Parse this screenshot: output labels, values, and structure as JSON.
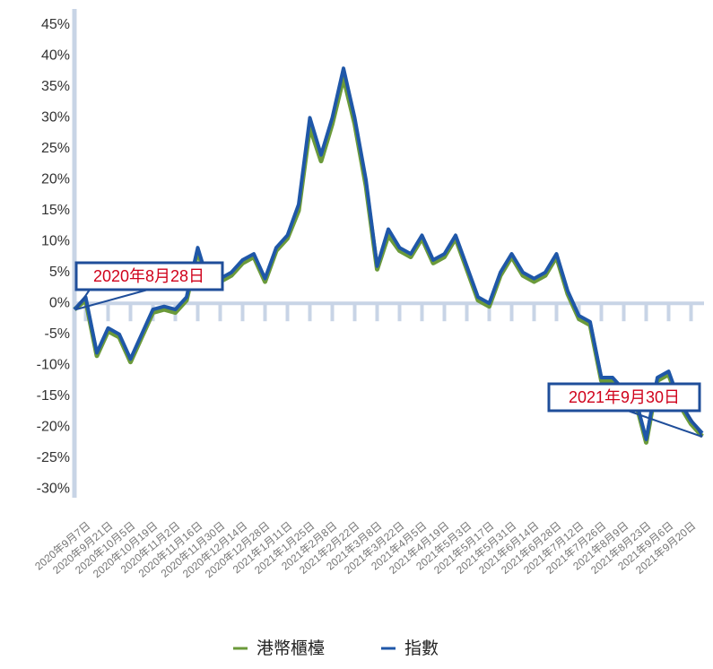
{
  "chart_data": {
    "type": "line",
    "categories": [
      null,
      "2020年9月7日",
      null,
      "2020年9月21日",
      null,
      "2020年10月5日",
      null,
      "2020年10月19日",
      null,
      "2020年11月2日",
      null,
      "2020年11月16日",
      null,
      "2020年11月30日",
      null,
      "2020年12月14日",
      null,
      "2020年12月28日",
      null,
      "2021年1月11日",
      null,
      "2021年1月25日",
      null,
      "2021年2月8日",
      null,
      "2021年2月22日",
      null,
      "2021年3月8日",
      null,
      "2021年3月22日",
      null,
      "2021年4月5日",
      null,
      "2021年4月19日",
      null,
      "2021年5月3日",
      null,
      "2021年5月17日",
      null,
      "2021年5月31日",
      null,
      "2021年6月14日",
      null,
      "2021年6月28日",
      null,
      "2021年7月12日",
      null,
      "2021年7月26日",
      null,
      "2021年8月9日",
      null,
      "2021年8月23日",
      null,
      "2021年9月6日",
      null,
      "2021年9月20日",
      null
    ],
    "series": [
      {
        "name": "港幣櫃檯",
        "color": "#6b9a3a",
        "values": [
          -1,
          0.5,
          -8.5,
          -4.5,
          -5.5,
          -9.5,
          -5.5,
          -1.5,
          -1,
          -1.5,
          0.5,
          8.5,
          2.5,
          3.5,
          4.5,
          6.5,
          7.5,
          3.5,
          8.5,
          10.5,
          15,
          28.5,
          23,
          29,
          36.5,
          29,
          19,
          5.5,
          11,
          8.5,
          7.5,
          10.5,
          6.5,
          7.5,
          10.5,
          5.5,
          0.5,
          -0.5,
          4.5,
          7.5,
          4.5,
          3.5,
          4.5,
          7.5,
          1.5,
          -2.5,
          -3.5,
          -12.5,
          -12.5,
          -14.5,
          -15.5,
          -22.5,
          -12.5,
          -11.5,
          -16.5,
          -19.5,
          -21.5
        ]
      },
      {
        "name": "指數",
        "color": "#1f57a8",
        "values": [
          -1,
          1,
          -8,
          -4,
          -5,
          -9,
          -5,
          -1,
          -0.5,
          -1,
          1,
          9,
          3,
          4,
          5,
          7,
          8,
          4,
          9,
          11,
          16,
          30,
          24,
          30,
          38,
          30,
          20,
          6,
          12,
          9,
          8,
          11,
          7,
          8,
          11,
          6,
          1,
          0,
          5,
          8,
          5,
          4,
          5,
          8,
          2,
          -2,
          -3,
          -12,
          -12,
          -14,
          -15,
          -22,
          -12,
          -11,
          -16,
          -19,
          -21
        ]
      }
    ],
    "ylim": [
      -31,
      46
    ],
    "yticks": [
      {
        "value": 45,
        "label": "45%"
      },
      {
        "value": 40,
        "label": "40%"
      },
      {
        "value": 35,
        "label": "35%"
      },
      {
        "value": 30,
        "label": "30%"
      },
      {
        "value": 25,
        "label": "25%"
      },
      {
        "value": 20,
        "label": "20%"
      },
      {
        "value": 15,
        "label": "15%"
      },
      {
        "value": 10,
        "label": "10%"
      },
      {
        "value": 5,
        "label": "5%"
      },
      {
        "value": 0,
        "label": "0%"
      },
      {
        "value": -5,
        "label": "-5%"
      },
      {
        "value": -10,
        "label": "-10%"
      },
      {
        "value": -15,
        "label": "-15%"
      },
      {
        "value": -20,
        "label": "-20%"
      },
      {
        "value": -25,
        "label": "-25%"
      },
      {
        "value": -30,
        "label": "-30%"
      }
    ],
    "annotations": [
      {
        "text": "2020年8月28日"
      },
      {
        "text": "2021年9月30日"
      }
    ]
  }
}
